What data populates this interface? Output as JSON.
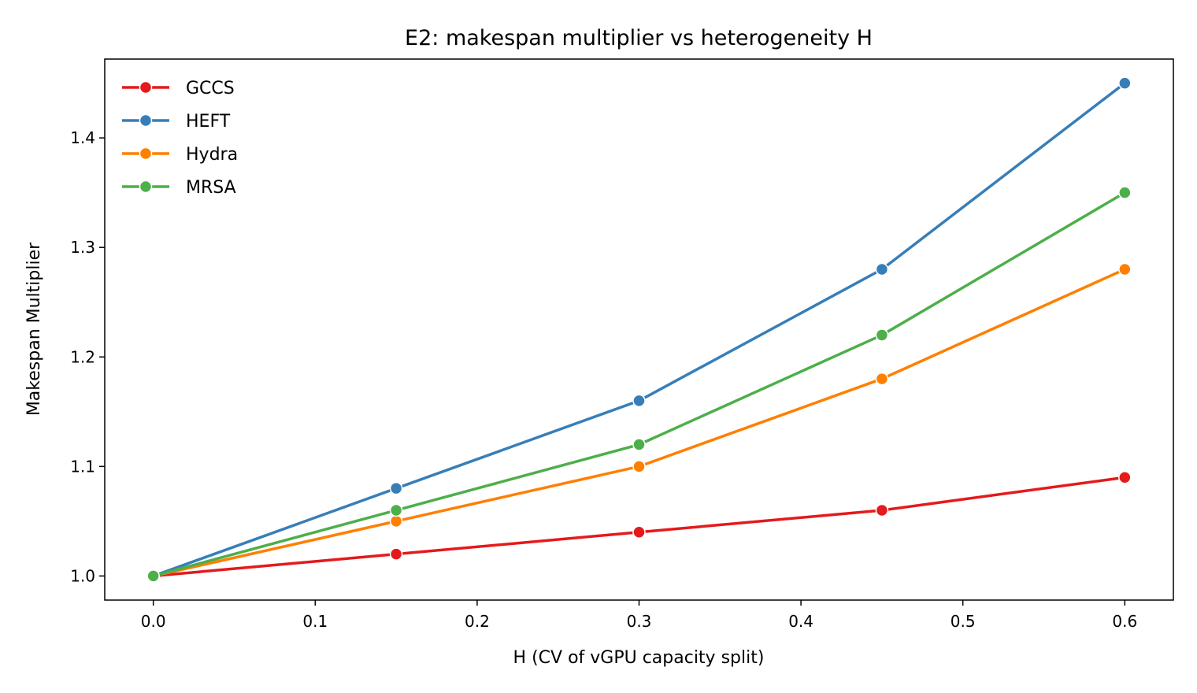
{
  "chart_data": {
    "type": "line",
    "title": "E2: makespan multiplier vs heterogeneity H",
    "xlabel": "H (CV of vGPU capacity split)",
    "ylabel": "Makespan Multiplier",
    "x": [
      0.0,
      0.15,
      0.3,
      0.45,
      0.6
    ],
    "xlim": [
      -0.03,
      0.63
    ],
    "ylim": [
      0.978,
      1.472
    ],
    "xticks": [
      0.0,
      0.1,
      0.2,
      0.3,
      0.4,
      0.5,
      0.6
    ],
    "xtick_labels": [
      "0.0",
      "0.1",
      "0.2",
      "0.3",
      "0.4",
      "0.5",
      "0.6"
    ],
    "yticks": [
      1.0,
      1.1,
      1.2,
      1.3,
      1.4
    ],
    "ytick_labels": [
      "1.0",
      "1.1",
      "1.2",
      "1.3",
      "1.4"
    ],
    "grid": false,
    "legend_position": "top-left",
    "series": [
      {
        "name": "GCCS",
        "color": "#e41a1c",
        "values": [
          1.0,
          1.02,
          1.04,
          1.06,
          1.09
        ]
      },
      {
        "name": "HEFT",
        "color": "#377eb8",
        "values": [
          1.0,
          1.08,
          1.16,
          1.28,
          1.45
        ]
      },
      {
        "name": "Hydra",
        "color": "#ff7f00",
        "values": [
          1.0,
          1.05,
          1.1,
          1.18,
          1.28
        ]
      },
      {
        "name": "MRSA",
        "color": "#4daf4a",
        "values": [
          1.0,
          1.06,
          1.12,
          1.22,
          1.35
        ]
      }
    ]
  }
}
